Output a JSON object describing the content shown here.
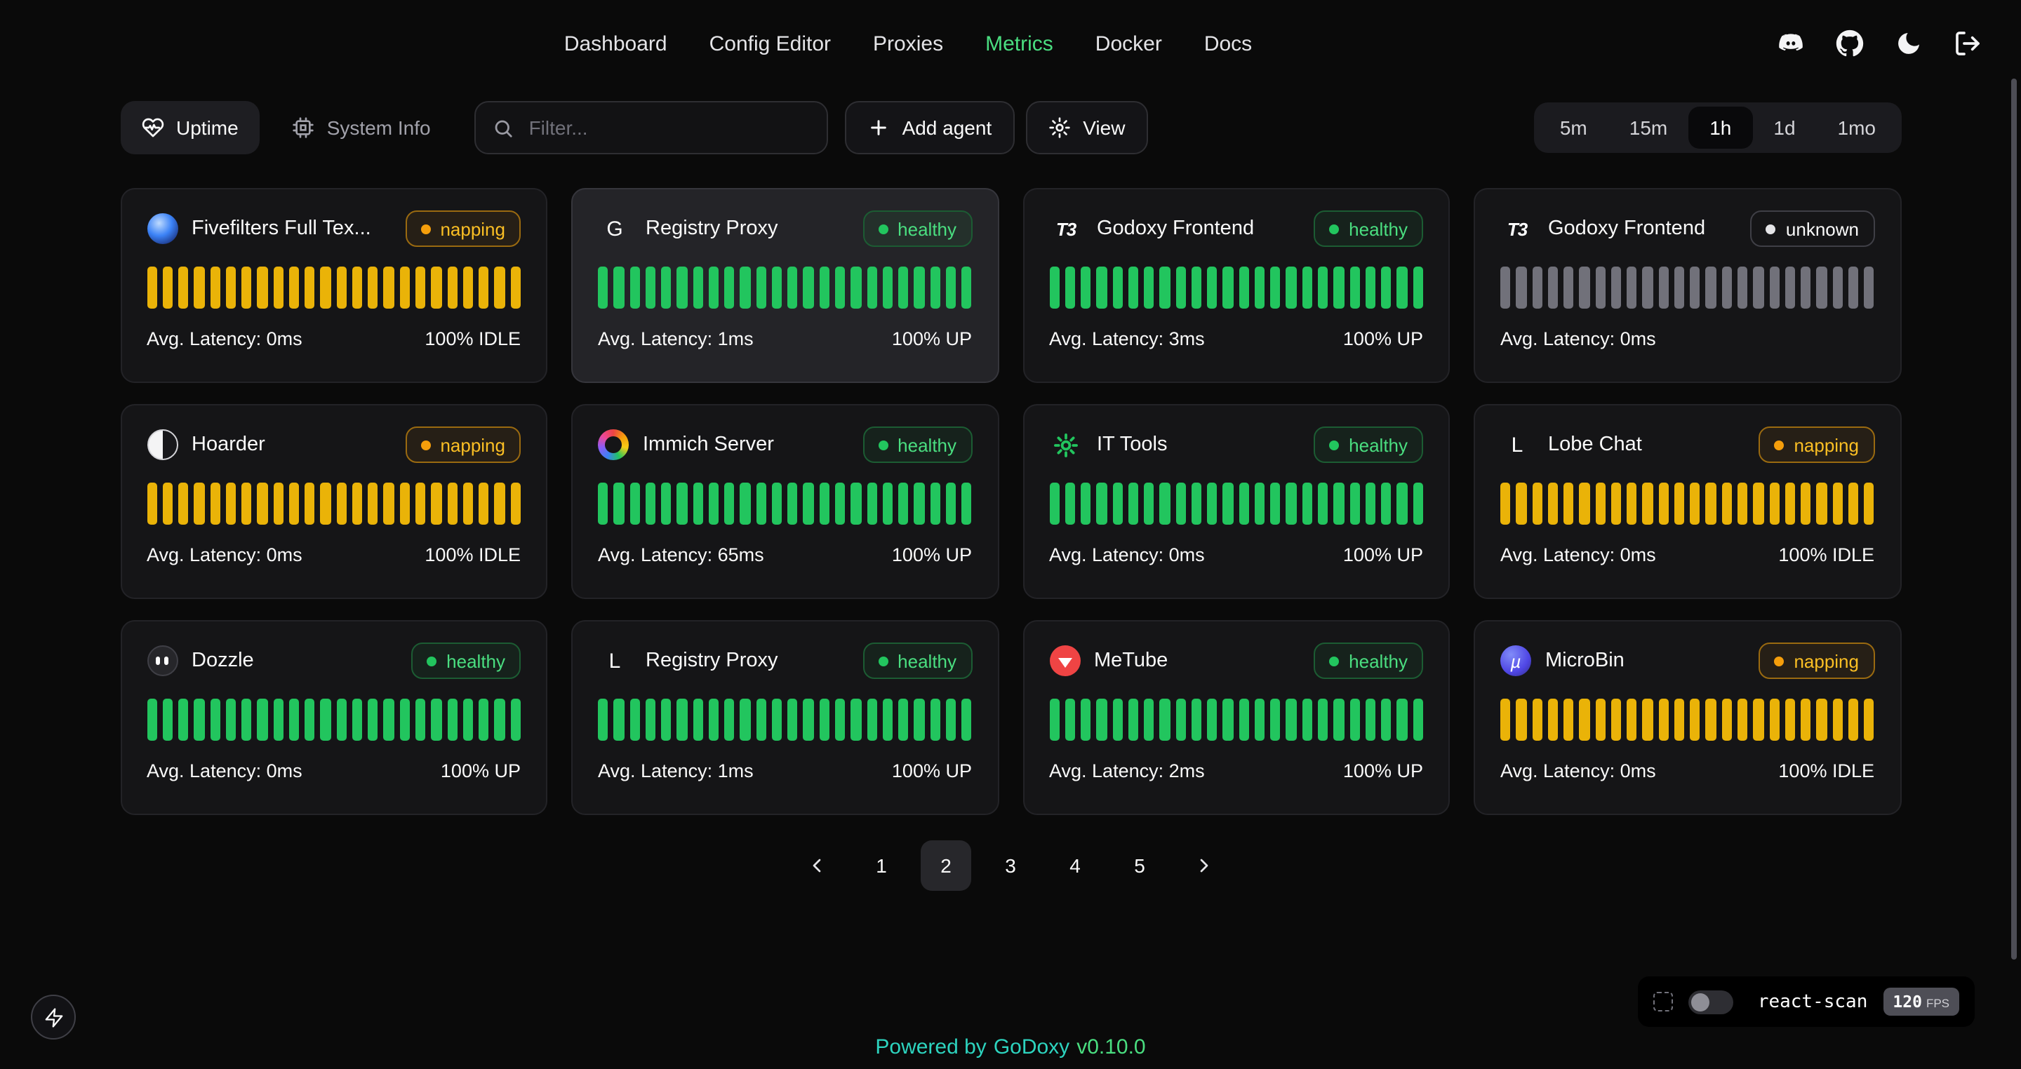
{
  "nav": {
    "items": [
      {
        "label": "Dashboard",
        "active": false
      },
      {
        "label": "Config Editor",
        "active": false
      },
      {
        "label": "Proxies",
        "active": false
      },
      {
        "label": "Metrics",
        "active": true
      },
      {
        "label": "Docker",
        "active": false
      },
      {
        "label": "Docs",
        "active": false
      }
    ],
    "icons": [
      "discord",
      "github",
      "dark-mode",
      "logout"
    ],
    "active_color": "#4ade80"
  },
  "toolbar": {
    "uptime": "Uptime",
    "system_info": "System Info",
    "filter_placeholder": "Filter...",
    "add_agent": "Add agent",
    "view": "View",
    "icons": {
      "uptime": "heart-pulse",
      "system_info": "cpu",
      "filter": "search",
      "add_agent": "plus",
      "view": "gear"
    }
  },
  "time_ranges": {
    "options": [
      "5m",
      "15m",
      "1h",
      "1d",
      "1mo"
    ],
    "selected": "1h"
  },
  "bars_per_card": 24,
  "status_styles": {
    "healthy": {
      "text": "#4ade80",
      "dot": "#22c55e",
      "bg": "rgba(34,197,94,0.08)",
      "border": "#1c5c33",
      "bar": "#22c55e"
    },
    "napping": {
      "text": "#fbbf24",
      "dot": "#f59e0b",
      "bg": "rgba(245,158,11,0.08)",
      "border": "#9a6a10",
      "bar": "#eab308"
    },
    "unknown": {
      "text": "#fafafa",
      "dot": "#e4e4e7",
      "bg": "transparent",
      "border": "#3f3f46",
      "bar": "#71717a"
    }
  },
  "cards": [
    {
      "name": "Fivefilters Full Tex...",
      "icon": "fivefilters",
      "status": "napping",
      "latency": "Avg. Latency: 0ms",
      "uptime": "100% IDLE",
      "highlight": false
    },
    {
      "name": "Registry Proxy",
      "icon": "letter-G",
      "status": "healthy",
      "latency": "Avg. Latency: 1ms",
      "uptime": "100% UP",
      "highlight": true
    },
    {
      "name": "Godoxy Frontend",
      "icon": "t3",
      "status": "healthy",
      "latency": "Avg. Latency: 3ms",
      "uptime": "100% UP",
      "highlight": false
    },
    {
      "name": "Godoxy Frontend",
      "icon": "t3",
      "status": "unknown",
      "latency": "Avg. Latency: 0ms",
      "uptime": "",
      "highlight": false
    },
    {
      "name": "Hoarder",
      "icon": "hoarder",
      "status": "napping",
      "latency": "Avg. Latency: 0ms",
      "uptime": "100% IDLE",
      "highlight": false
    },
    {
      "name": "Immich Server",
      "icon": "immich",
      "status": "healthy",
      "latency": "Avg. Latency: 65ms",
      "uptime": "100% UP",
      "highlight": false
    },
    {
      "name": "IT Tools",
      "icon": "it-tools",
      "status": "healthy",
      "latency": "Avg. Latency: 0ms",
      "uptime": "100% UP",
      "highlight": false
    },
    {
      "name": "Lobe Chat",
      "icon": "letter-L",
      "status": "napping",
      "latency": "Avg. Latency: 0ms",
      "uptime": "100% IDLE",
      "highlight": false
    },
    {
      "name": "Dozzle",
      "icon": "dozzle",
      "status": "healthy",
      "latency": "Avg. Latency: 0ms",
      "uptime": "100% UP",
      "highlight": false
    },
    {
      "name": "Registry Proxy",
      "icon": "letter-L",
      "status": "healthy",
      "latency": "Avg. Latency: 1ms",
      "uptime": "100% UP",
      "highlight": false
    },
    {
      "name": "MeTube",
      "icon": "metube",
      "status": "healthy",
      "latency": "Avg. Latency: 2ms",
      "uptime": "100% UP",
      "highlight": false
    },
    {
      "name": "MicroBin",
      "icon": "microbin",
      "status": "napping",
      "latency": "Avg. Latency: 0ms",
      "uptime": "100% IDLE",
      "highlight": false
    }
  ],
  "pagination": {
    "pages": [
      "1",
      "2",
      "3",
      "4",
      "5"
    ],
    "current": "2",
    "icons": [
      "chevron-left",
      "chevron-right"
    ]
  },
  "footer": {
    "powered_by": "Powered by",
    "brand": "GoDoxy",
    "version": "v0.10.0"
  },
  "react_scan": {
    "label": "react-scan",
    "fps": "120",
    "fps_unit": "FPS",
    "enabled": false,
    "icons": [
      "inspect",
      "toggle"
    ]
  },
  "fab_icon": "lightning",
  "colors": {
    "background": "#0a0a0a",
    "card": "#151517",
    "card_highlight": "#242428",
    "accent_green": "#4ade80",
    "accent_teal": "#2dd4bf",
    "bar_green": "#22c55e",
    "bar_yellow": "#eab308",
    "bar_gray": "#71717a"
  }
}
